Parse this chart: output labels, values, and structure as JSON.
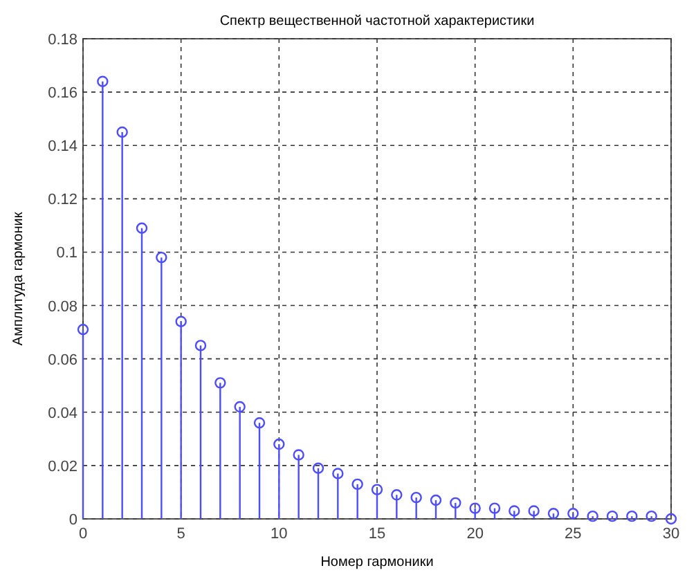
{
  "chart_data": {
    "type": "lollipop",
    "title": "Спектр вещественной частотной характеристики",
    "xlabel": "Номер гармоники",
    "ylabel": "Амплитуда гармоник",
    "x": [
      0,
      1,
      2,
      3,
      4,
      5,
      6,
      7,
      8,
      9,
      10,
      11,
      12,
      13,
      14,
      15,
      16,
      17,
      18,
      19,
      20,
      21,
      22,
      23,
      24,
      25,
      26,
      27,
      28,
      29,
      30
    ],
    "values": [
      0.071,
      0.164,
      0.145,
      0.109,
      0.098,
      0.074,
      0.065,
      0.051,
      0.042,
      0.036,
      0.028,
      0.024,
      0.019,
      0.017,
      0.013,
      0.011,
      0.009,
      0.008,
      0.007,
      0.006,
      0.004,
      0.004,
      0.003,
      0.003,
      0.002,
      0.002,
      0.001,
      0.001,
      0.001,
      0.001,
      0.0
    ],
    "color": "#4d4dff",
    "marker": "circle",
    "grid": true,
    "xlim": [
      0,
      30
    ],
    "xticks": [
      0,
      5,
      10,
      15,
      20,
      25,
      30
    ],
    "ylim": [
      0,
      0.18
    ],
    "yticks": [
      0,
      0.02,
      0.04,
      0.06,
      0.08,
      0.1,
      0.12,
      0.14,
      0.16,
      0.18
    ]
  }
}
